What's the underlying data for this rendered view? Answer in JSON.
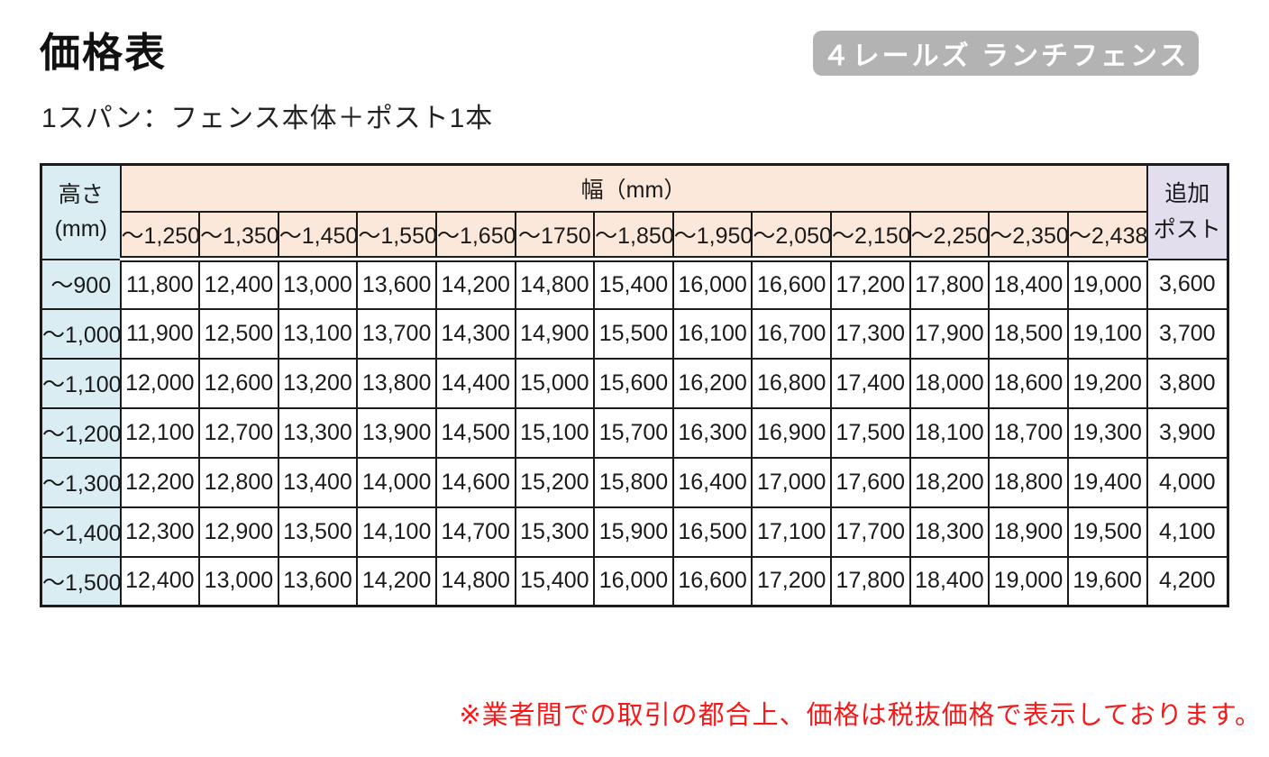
{
  "page": {
    "title": "価格表",
    "badge": "４レールズ ランチフェンス",
    "subtitle": "1スパン：フェンス本体＋ポスト1本",
    "footnote": "※業者間での取引の都合上、価格は税抜価格で表示しております。"
  },
  "table": {
    "corner_header_line1": "高さ",
    "corner_header_line2": "(mm)",
    "width_header": "幅（mm）",
    "addon_header_line1": "追加",
    "addon_header_line2": "ポスト",
    "width_labels": [
      "～1,250",
      "～1,350",
      "～1,450",
      "～1,550",
      "～1,650",
      "～1750",
      "～1,850",
      "～1,950",
      "～2,050",
      "～2,150",
      "～2,250",
      "～2,350",
      "～2,438"
    ],
    "rows": [
      {
        "height": "～900",
        "prices": [
          "11,800",
          "12,400",
          "13,000",
          "13,600",
          "14,200",
          "14,800",
          "15,400",
          "16,000",
          "16,600",
          "17,200",
          "17,800",
          "18,400",
          "19,000"
        ],
        "addon": "3,600"
      },
      {
        "height": "～1,000",
        "prices": [
          "11,900",
          "12,500",
          "13,100",
          "13,700",
          "14,300",
          "14,900",
          "15,500",
          "16,100",
          "16,700",
          "17,300",
          "17,900",
          "18,500",
          "19,100"
        ],
        "addon": "3,700"
      },
      {
        "height": "～1,100",
        "prices": [
          "12,000",
          "12,600",
          "13,200",
          "13,800",
          "14,400",
          "15,000",
          "15,600",
          "16,200",
          "16,800",
          "17,400",
          "18,000",
          "18,600",
          "19,200"
        ],
        "addon": "3,800"
      },
      {
        "height": "～1,200",
        "prices": [
          "12,100",
          "12,700",
          "13,300",
          "13,900",
          "14,500",
          "15,100",
          "15,700",
          "16,300",
          "16,900",
          "17,500",
          "18,100",
          "18,700",
          "19,300"
        ],
        "addon": "3,900"
      },
      {
        "height": "～1,300",
        "prices": [
          "12,200",
          "12,800",
          "13,400",
          "14,000",
          "14,600",
          "15,200",
          "15,800",
          "16,400",
          "17,000",
          "17,600",
          "18,200",
          "18,800",
          "19,400"
        ],
        "addon": "4,000"
      },
      {
        "height": "～1,400",
        "prices": [
          "12,300",
          "12,900",
          "13,500",
          "14,100",
          "14,700",
          "15,300",
          "15,900",
          "16,500",
          "17,100",
          "17,700",
          "18,300",
          "18,900",
          "19,500"
        ],
        "addon": "4,100"
      },
      {
        "height": "～1,500",
        "prices": [
          "12,400",
          "13,000",
          "13,600",
          "14,200",
          "14,800",
          "15,400",
          "16,000",
          "16,600",
          "17,200",
          "17,800",
          "18,400",
          "19,000",
          "19,600"
        ],
        "addon": "4,200"
      }
    ]
  },
  "colors": {
    "badge_bg": "#b3b3b3",
    "height_header_bg": "#d9edf2",
    "width_header_bg": "#fce8da",
    "addon_header_bg": "#e2deee",
    "note_red": "#f61919",
    "border": "#1b1b1b"
  }
}
